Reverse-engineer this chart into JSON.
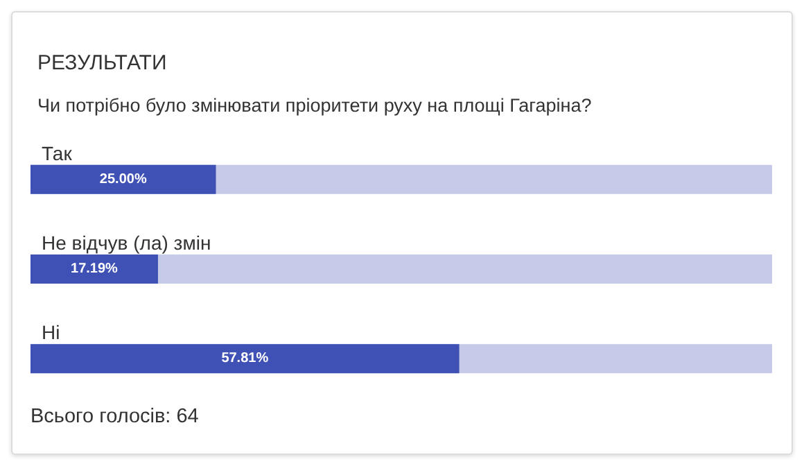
{
  "chart_data": {
    "type": "bar",
    "orientation": "horizontal",
    "title": "РЕЗУЛЬТАТИ",
    "subtitle": "Чи потрібно було змінювати пріоритети руху на площі Гагаріна?",
    "categories": [
      "Так",
      "Не відчув (ла) змін",
      "Ні"
    ],
    "values": [
      25,
      17.19,
      57.81
    ],
    "value_labels": [
      "25.00%",
      "17.19%",
      "57.81%"
    ],
    "color": "#3f51b5",
    "xlim": [
      0,
      100
    ],
    "tick_labels": false,
    "annotations": [
      "Всього голосів: 64"
    ]
  }
}
